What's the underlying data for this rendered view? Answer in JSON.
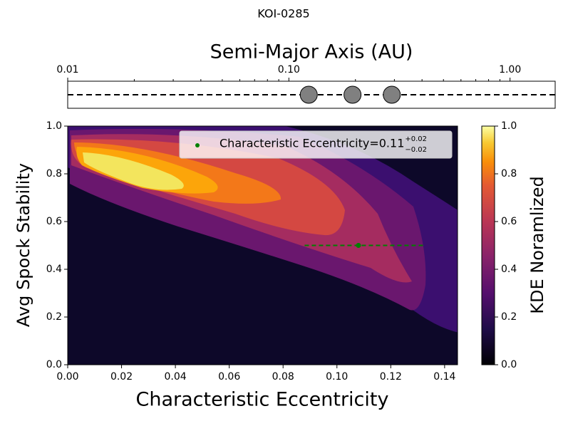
{
  "chart_data": [
    {
      "type": "scatter",
      "title": "KOI-0285",
      "xlabel": "Semi-Major Axis (AU)",
      "xscale": "log",
      "xlim": [
        0.01,
        1.6
      ],
      "xticks": [
        {
          "value": 0.01,
          "label": "0.01"
        },
        {
          "value": 0.1,
          "label": "0.10"
        },
        {
          "value": 1,
          "label": "1.00"
        }
      ],
      "xminorticks": [
        0.02,
        0.03,
        0.04,
        0.05,
        0.06,
        0.07,
        0.08,
        0.09,
        0.2,
        0.3,
        0.4,
        0.5,
        0.6,
        0.7,
        0.8,
        0.9
      ],
      "x": [
        0.123,
        0.194,
        0.292
      ],
      "color": "#808080"
    },
    {
      "type": "contour",
      "xlabel": "Characteristic Eccentricity",
      "ylabel": "Avg Spock Stability",
      "xlim": [
        0,
        0.1448
      ],
      "ylim": [
        0,
        1
      ],
      "xticks": [
        {
          "value": 0,
          "label": "0.00"
        },
        {
          "value": 0.02,
          "label": "0.02"
        },
        {
          "value": 0.04,
          "label": "0.04"
        },
        {
          "value": 0.06,
          "label": "0.06"
        },
        {
          "value": 0.08,
          "label": "0.08"
        },
        {
          "value": 0.1,
          "label": "0.10"
        },
        {
          "value": 0.12,
          "label": "0.12"
        },
        {
          "value": 0.14,
          "label": "0.14"
        }
      ],
      "yticks": [
        {
          "value": 0,
          "label": "0.0"
        },
        {
          "value": 0.2,
          "label": "0.2"
        },
        {
          "value": 0.4,
          "label": "0.4"
        },
        {
          "value": 0.6,
          "label": "0.6"
        },
        {
          "value": 0.8,
          "label": "0.8"
        },
        {
          "value": 1,
          "label": "1.0"
        }
      ],
      "background": "#0d0829",
      "levels": [
        0.1,
        0.25,
        0.4,
        0.55,
        0.7,
        0.8,
        0.9
      ],
      "colors": [
        "#3b0f6f",
        "#6a176e",
        "#a52c60",
        "#d44842",
        "#f37819",
        "#fca50a",
        "#f3e55d"
      ],
      "legend": "upper right",
      "series": [
        {
          "name": "Characteristic Eccentricity=0.11",
          "sup": "+0.02",
          "sub": "−0.02",
          "x": [
            0.108
          ],
          "y": [
            0.5
          ],
          "xerr_minus": [
            0.02
          ],
          "xerr_plus": [
            0.024
          ],
          "color": "#008000"
        }
      ],
      "colorbar": {
        "label": "KDE Noramlized",
        "lim": [
          0,
          1
        ],
        "ticks": [
          {
            "value": 0,
            "label": "0.0"
          },
          {
            "value": 0.2,
            "label": "0.2"
          },
          {
            "value": 0.4,
            "label": "0.4"
          },
          {
            "value": 0.6,
            "label": "0.6"
          },
          {
            "value": 0.8,
            "label": "0.8"
          },
          {
            "value": 1,
            "label": "1.0"
          }
        ]
      }
    }
  ]
}
